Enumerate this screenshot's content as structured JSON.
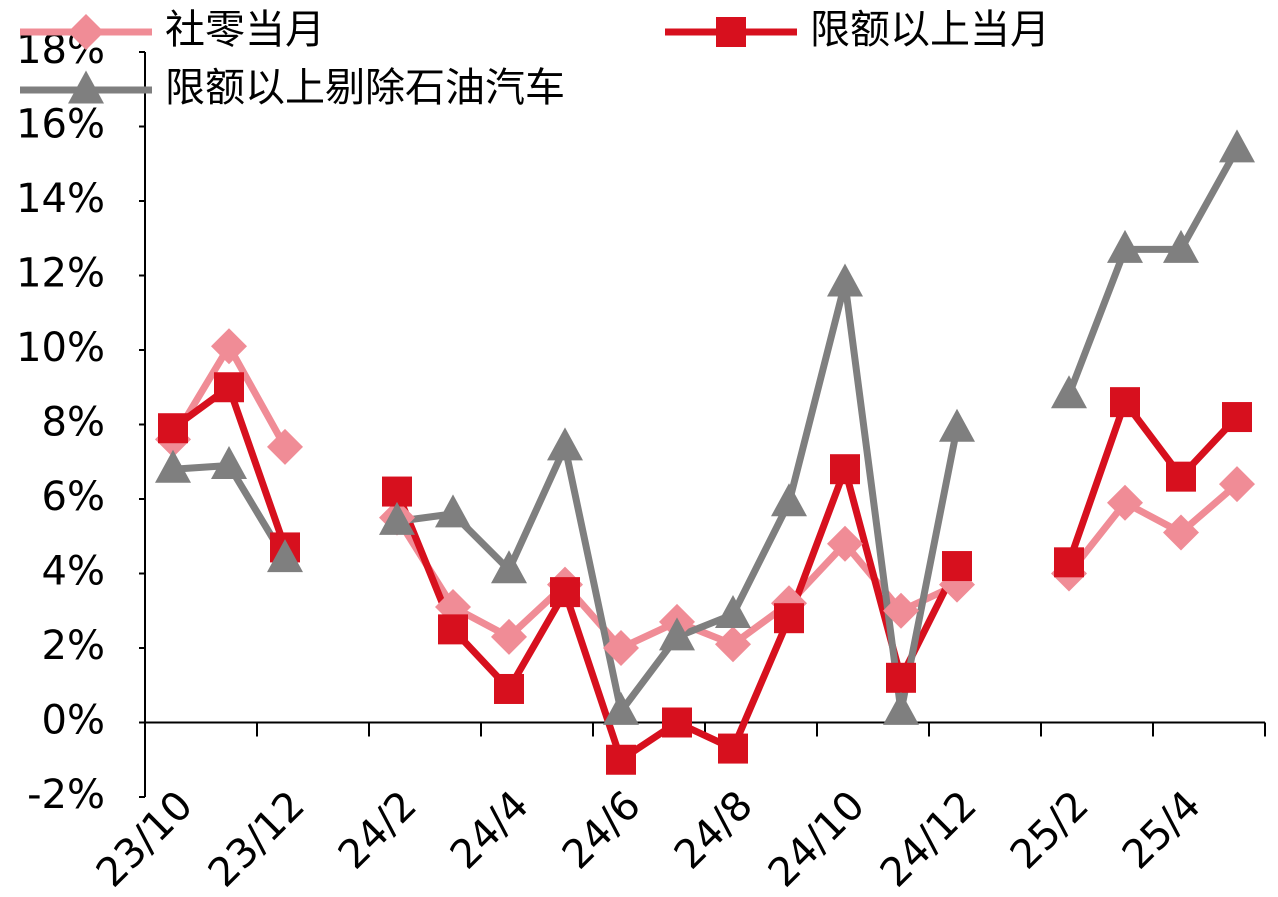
{
  "chart_data": {
    "type": "line",
    "categories": [
      "23/10",
      null,
      "23/12",
      null,
      "24/2",
      null,
      "24/4",
      null,
      "24/6",
      null,
      "24/8",
      null,
      "24/10",
      null,
      "24/12",
      null,
      "25/2",
      null,
      "25/4",
      null
    ],
    "series": [
      {
        "name": "社零当月",
        "color": "#f08c96",
        "marker": "diamond",
        "values": [
          7.6,
          10.1,
          7.4,
          null,
          5.5,
          3.1,
          2.3,
          3.7,
          2.0,
          2.7,
          2.1,
          3.2,
          4.8,
          3.0,
          3.7,
          null,
          4.0,
          5.9,
          5.1,
          6.4
        ]
      },
      {
        "name": "限额以上当月",
        "color": "#d7101e",
        "marker": "square",
        "values": [
          7.9,
          9.0,
          4.7,
          null,
          6.2,
          2.5,
          0.9,
          3.5,
          -1.0,
          0.0,
          -0.7,
          2.8,
          6.8,
          1.2,
          4.2,
          null,
          4.3,
          8.6,
          6.6,
          8.2
        ]
      },
      {
        "name": "限额以上剔除石油汽车",
        "color": "#7f7f7f",
        "marker": "triangle",
        "values": [
          6.8,
          6.9,
          4.4,
          null,
          5.4,
          5.6,
          4.1,
          7.4,
          0.3,
          2.3,
          2.9,
          5.9,
          11.8,
          0.3,
          7.9,
          null,
          8.8,
          12.7,
          12.7,
          15.4
        ]
      }
    ],
    "ylim": [
      -2,
      18
    ],
    "yticks": [
      {
        "value": -2,
        "label": "-2%"
      },
      {
        "value": 0,
        "label": "0%"
      },
      {
        "value": 2,
        "label": "2%"
      },
      {
        "value": 4,
        "label": "4%"
      },
      {
        "value": 6,
        "label": "6%"
      },
      {
        "value": 8,
        "label": "8%"
      },
      {
        "value": 10,
        "label": "10%"
      },
      {
        "value": 12,
        "label": "12%"
      },
      {
        "value": 14,
        "label": "14%"
      },
      {
        "value": 16,
        "label": "16%"
      },
      {
        "value": 18,
        "label": "18%"
      }
    ],
    "grid": false
  }
}
